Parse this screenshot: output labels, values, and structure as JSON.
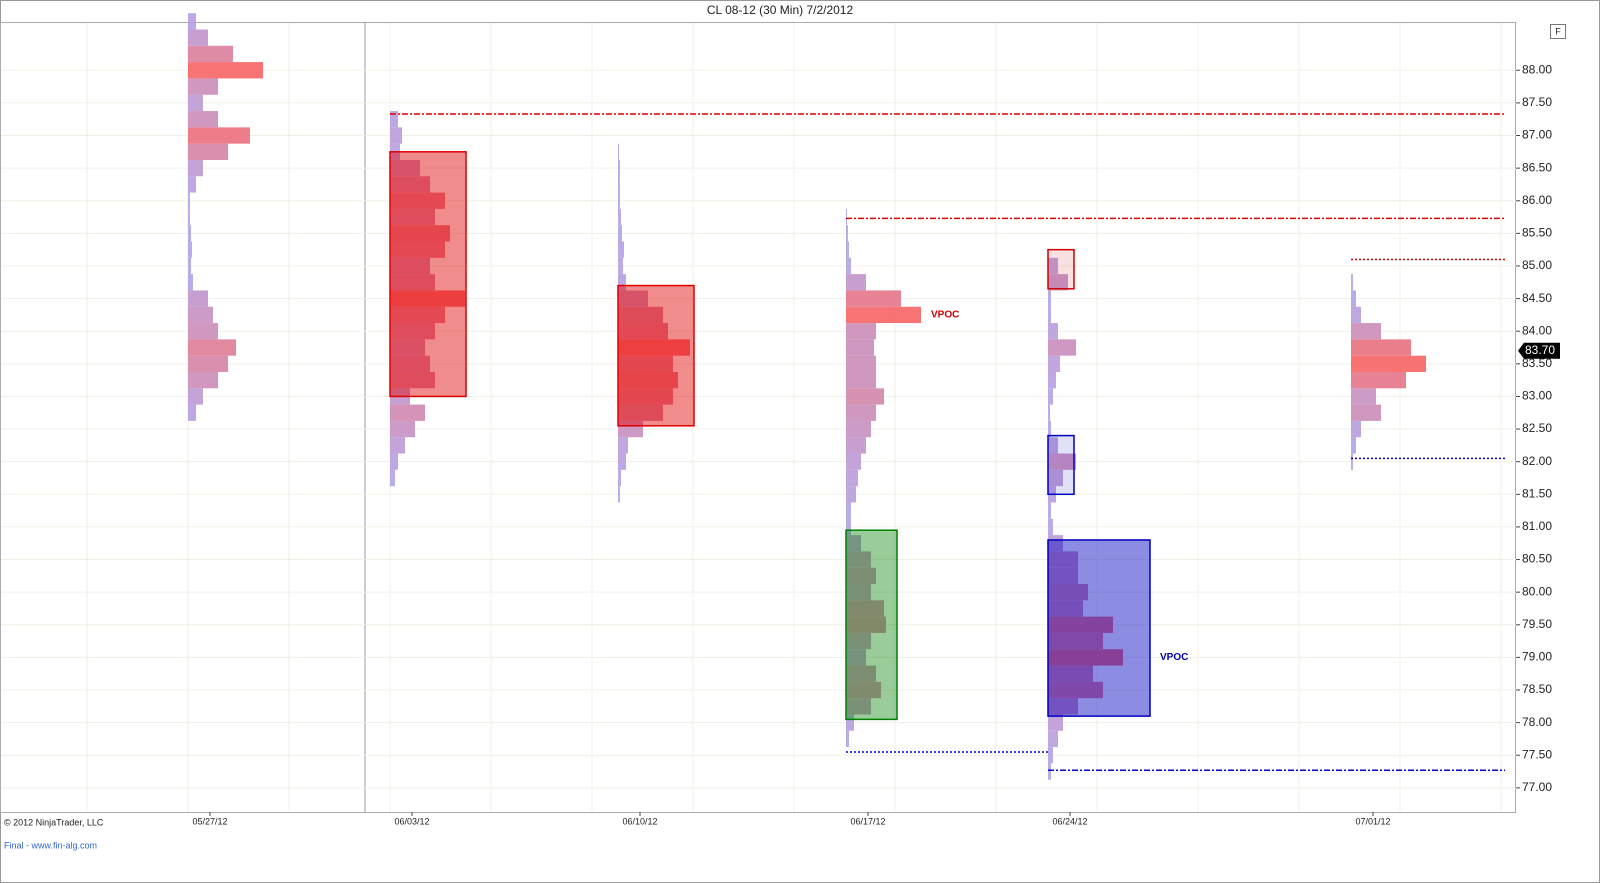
{
  "chart_data": {
    "type": "profile",
    "title": "CL 08-12 (30 Min)  7/2/2012",
    "copyright": "© 2012 NinjaTrader, LLC",
    "footer": "Final - www.fin-alg.com",
    "button": "F",
    "categories": [
      "05/27/12",
      "06/03/12",
      "06/10/12",
      "06/17/12",
      "06/24/12",
      "07/01/12"
    ],
    "ylim": [
      76.63,
      88.74
    ],
    "yticks": [
      {
        "value": 77,
        "label": "77.00"
      },
      {
        "value": 77.5,
        "label": "77.50"
      },
      {
        "value": 78,
        "label": "78.00"
      },
      {
        "value": 78.5,
        "label": "78.50"
      },
      {
        "value": 79,
        "label": "79.00"
      },
      {
        "value": 79.5,
        "label": "79.50"
      },
      {
        "value": 80,
        "label": "80.00"
      },
      {
        "value": 80.5,
        "label": "80.50"
      },
      {
        "value": 81,
        "label": "81.00"
      },
      {
        "value": 81.5,
        "label": "81.50"
      },
      {
        "value": 82,
        "label": "82.00"
      },
      {
        "value": 82.5,
        "label": "82.50"
      },
      {
        "value": 83,
        "label": "83.00"
      },
      {
        "value": 83.5,
        "label": "83.50"
      },
      {
        "value": 84,
        "label": "84.00"
      },
      {
        "value": 84.5,
        "label": "84.50"
      },
      {
        "value": 85,
        "label": "85.00"
      },
      {
        "value": 85.5,
        "label": "85.50"
      },
      {
        "value": 86,
        "label": "86.00"
      },
      {
        "value": 86.5,
        "label": "86.50"
      },
      {
        "value": 87,
        "label": "87.00"
      },
      {
        "value": 87.5,
        "label": "87.50"
      },
      {
        "value": 88,
        "label": "88.00"
      }
    ],
    "grid": true,
    "low_color": "#aea6f0",
    "high_color": "#f76464",
    "current_price": {
      "value": 83.7,
      "label": "83.70"
    },
    "profiles": [
      {
        "levels": [
          82.75,
          83,
          83.25,
          83.5,
          83.75,
          84,
          84.25,
          84.5,
          84.75,
          85,
          85.25,
          85.5,
          85.75,
          86,
          86.25,
          86.5,
          86.75,
          87,
          87.25,
          87.5,
          87.75,
          88,
          88.25,
          88.5,
          88.75
        ],
        "volumes": [
          8,
          15,
          30,
          40,
          48,
          30,
          25,
          20,
          5,
          3,
          4,
          3,
          2,
          2,
          8,
          15,
          40,
          62,
          30,
          15,
          30,
          75,
          45,
          20,
          8
        ],
        "boxes": []
      },
      {
        "levels": [
          81.75,
          82,
          82.25,
          82.5,
          82.75,
          83,
          83.25,
          83.5,
          83.75,
          84,
          84.25,
          84.5,
          84.75,
          85,
          85.25,
          85.5,
          85.75,
          86,
          86.25,
          86.5,
          86.75,
          87,
          87.25
        ],
        "volumes": [
          5,
          8,
          15,
          25,
          35,
          20,
          45,
          40,
          35,
          45,
          55,
          75,
          45,
          40,
          55,
          60,
          45,
          55,
          40,
          30,
          10,
          12,
          8
        ],
        "boxes": [
          {
            "low": 83.0,
            "high": 86.75,
            "color": "#e00000",
            "fill_opacity": 0.45
          }
        ]
      },
      {
        "levels": [
          81.5,
          81.75,
          82,
          82.25,
          82.5,
          82.75,
          83,
          83.25,
          83.5,
          83.75,
          84,
          84.25,
          84.5,
          84.75,
          85,
          85.25,
          85.5,
          85.75,
          86,
          86.25,
          86.5,
          86.75
        ],
        "volumes": [
          2,
          3,
          8,
          10,
          25,
          45,
          55,
          60,
          55,
          72,
          50,
          45,
          30,
          8,
          5,
          6,
          4,
          3,
          2,
          2,
          2,
          1
        ],
        "boxes": [
          {
            "low": 82.55,
            "high": 84.7,
            "color": "#e00000",
            "fill_opacity": 0.45
          }
        ]
      },
      {
        "levels": [
          77.75,
          78,
          78.25,
          78.5,
          78.75,
          79,
          79.25,
          79.5,
          79.75,
          80,
          80.25,
          80.5,
          80.75,
          81,
          81.25,
          81.5,
          81.75,
          82,
          82.25,
          82.5,
          82.75,
          83,
          83.25,
          83.5,
          83.75,
          84,
          84.25,
          84.5,
          84.75,
          85,
          85.25,
          85.5,
          85.75
        ],
        "volumes": [
          3,
          8,
          25,
          35,
          30,
          20,
          25,
          40,
          38,
          25,
          30,
          25,
          15,
          5,
          5,
          10,
          12,
          15,
          20,
          25,
          30,
          38,
          30,
          30,
          28,
          30,
          75,
          55,
          20,
          5,
          3,
          2,
          1
        ],
        "boxes": [
          {
            "low": 78.05,
            "high": 80.95,
            "color": "#008000",
            "fill_opacity": 0.4
          }
        ],
        "vpoc_label": "VPOC",
        "vpoc_color": "#d00000"
      },
      {
        "levels": [
          77.25,
          77.5,
          77.75,
          78,
          78.25,
          78.5,
          78.75,
          79,
          79.25,
          79.5,
          79.75,
          80,
          80.25,
          80.5,
          80.75,
          81,
          81.25,
          81.5,
          81.75,
          82,
          82.25,
          82.5,
          82.75,
          83,
          83.25,
          83.5,
          83.75,
          84,
          84.25,
          84.5,
          84.75,
          85
        ],
        "volumes": [
          3,
          5,
          10,
          15,
          30,
          55,
          45,
          75,
          55,
          65,
          35,
          40,
          30,
          30,
          15,
          5,
          3,
          8,
          15,
          28,
          10,
          3,
          2,
          5,
          8,
          12,
          28,
          10,
          3,
          3,
          20,
          10
        ],
        "boxes": [
          {
            "low": 78.1,
            "high": 80.8,
            "color": "#0000c0",
            "fill_opacity": 0.45
          },
          {
            "low": 81.5,
            "high": 82.4,
            "color": "#0000c0",
            "fill_opacity": 0.12
          },
          {
            "low": 84.65,
            "high": 85.25,
            "color": "#d00000",
            "fill_opacity": 0.12
          }
        ],
        "vpoc_label": "VPOC",
        "vpoc_color": "#0000b0"
      },
      {
        "levels": [
          82,
          82.25,
          82.5,
          82.75,
          83,
          83.25,
          83.5,
          83.75,
          84,
          84.25,
          84.5,
          84.75
        ],
        "volumes": [
          2,
          5,
          10,
          30,
          25,
          55,
          75,
          60,
          30,
          10,
          5,
          2
        ],
        "boxes": []
      }
    ],
    "lines": [
      {
        "value": 87.33,
        "color": "#e00000",
        "style": "dashdot"
      },
      {
        "value": 85.73,
        "color": "#e00000",
        "style": "dashdot"
      },
      {
        "value": 85.1,
        "color": "#e00000",
        "style": "dot"
      },
      {
        "value": 82.05,
        "color": "#0000d0",
        "style": "dot"
      },
      {
        "value": 77.55,
        "color": "#0000d0",
        "style": "dot"
      },
      {
        "value": 77.27,
        "color": "#0000d0",
        "style": "dashdot"
      }
    ]
  }
}
